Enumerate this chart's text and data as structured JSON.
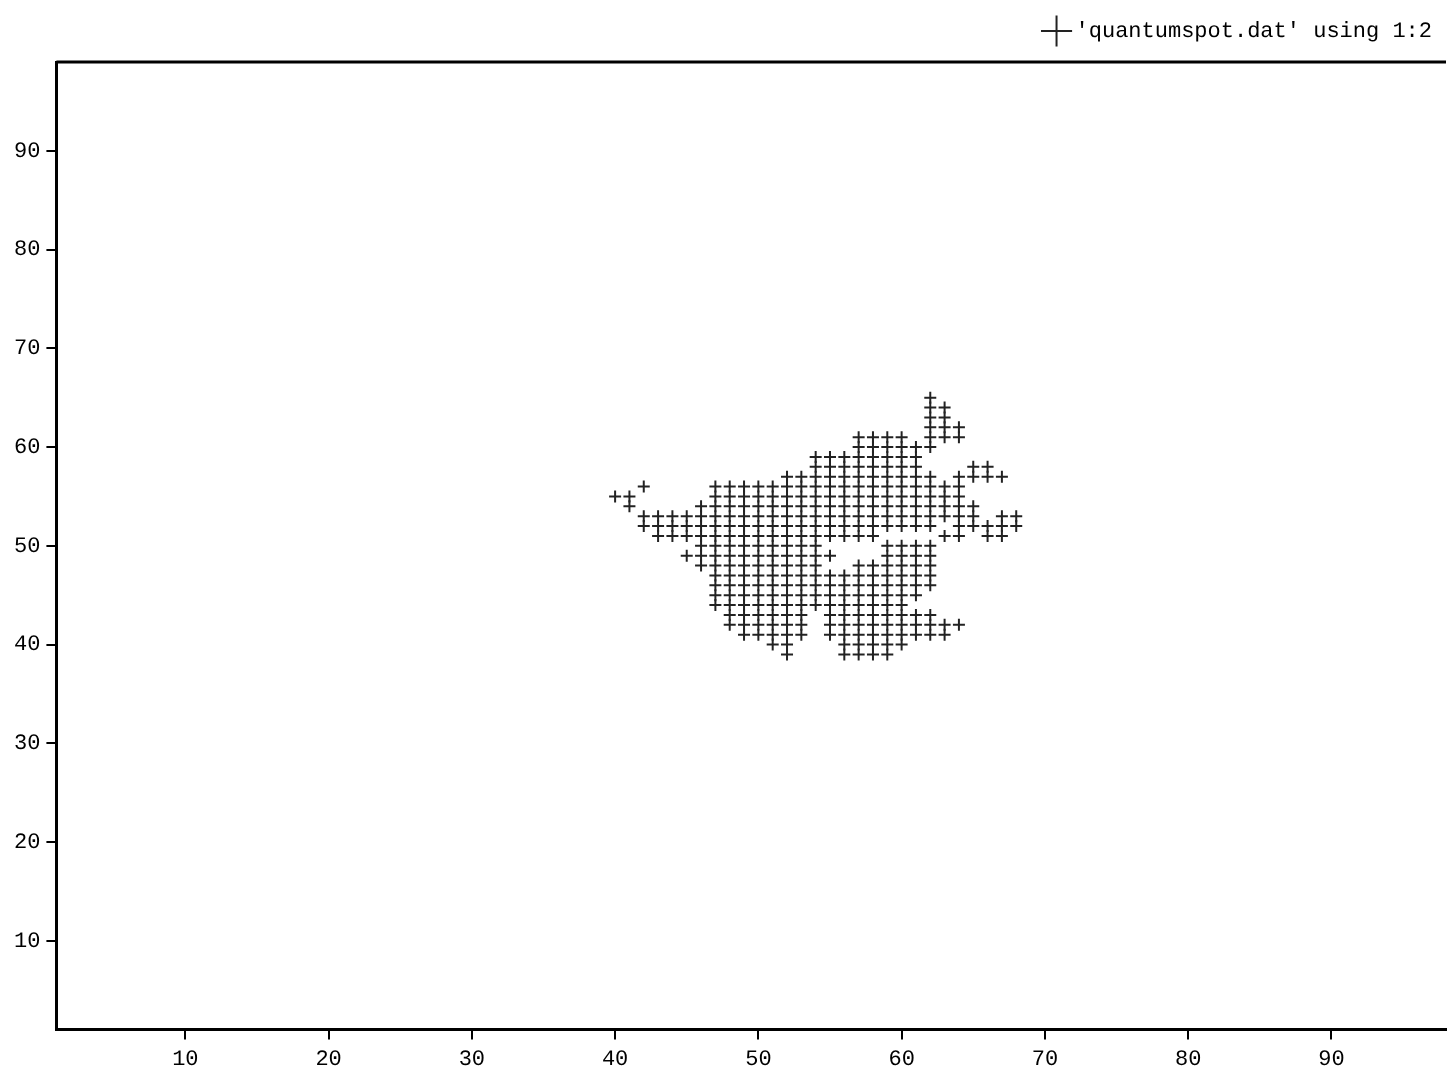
{
  "chart_data": {
    "type": "scatter",
    "xlim": [
      1,
      98
    ],
    "ylim": [
      1,
      99
    ],
    "xticks": [
      10,
      20,
      30,
      40,
      50,
      60,
      70,
      80,
      90
    ],
    "yticks": [
      10,
      20,
      30,
      40,
      50,
      60,
      70,
      80,
      90
    ],
    "grid": false,
    "legend": "top right",
    "marker": "cross",
    "series": [
      {
        "name": "'quantumspot.dat' using 1:2",
        "color": "#222222",
        "x": [
          62,
          62,
          63,
          62,
          63,
          62,
          63,
          64,
          57,
          58,
          59,
          60,
          62,
          63,
          64,
          57,
          58,
          59,
          60,
          61,
          62,
          54,
          55,
          56,
          57,
          58,
          59,
          60,
          61,
          54,
          55,
          56,
          57,
          58,
          59,
          60,
          61,
          65,
          66,
          52,
          53,
          54,
          55,
          56,
          57,
          58,
          59,
          60,
          61,
          62,
          64,
          65,
          66,
          67,
          42,
          47,
          48,
          49,
          50,
          51,
          52,
          53,
          54,
          55,
          56,
          57,
          58,
          59,
          60,
          61,
          62,
          63,
          64,
          40,
          41,
          47,
          48,
          49,
          50,
          51,
          52,
          53,
          54,
          55,
          56,
          57,
          58,
          59,
          60,
          61,
          62,
          63,
          64,
          41,
          46,
          47,
          48,
          49,
          50,
          51,
          52,
          53,
          54,
          55,
          56,
          57,
          58,
          59,
          60,
          61,
          62,
          63,
          64,
          65,
          42,
          43,
          44,
          45,
          46,
          47,
          48,
          49,
          50,
          51,
          52,
          53,
          54,
          55,
          56,
          57,
          58,
          59,
          60,
          61,
          62,
          63,
          64,
          65,
          67,
          68,
          42,
          43,
          44,
          45,
          46,
          47,
          48,
          49,
          50,
          51,
          52,
          53,
          54,
          55,
          56,
          57,
          58,
          59,
          60,
          61,
          62,
          64,
          65,
          66,
          67,
          68,
          43,
          44,
          45,
          46,
          47,
          48,
          49,
          50,
          51,
          52,
          53,
          54,
          55,
          56,
          57,
          58,
          63,
          64,
          66,
          67,
          46,
          47,
          48,
          49,
          50,
          51,
          52,
          53,
          54,
          59,
          60,
          61,
          62,
          45,
          46,
          47,
          48,
          49,
          50,
          51,
          52,
          53,
          54,
          55,
          59,
          60,
          61,
          62,
          46,
          47,
          48,
          49,
          50,
          51,
          52,
          53,
          54,
          57,
          58,
          59,
          60,
          61,
          62,
          47,
          48,
          49,
          50,
          51,
          52,
          53,
          54,
          55,
          56,
          57,
          58,
          59,
          60,
          61,
          62,
          47,
          48,
          49,
          50,
          51,
          52,
          53,
          54,
          55,
          56,
          57,
          58,
          59,
          60,
          61,
          62,
          47,
          48,
          49,
          50,
          51,
          52,
          53,
          54,
          55,
          56,
          57,
          58,
          59,
          60,
          61,
          47,
          48,
          49,
          50,
          51,
          52,
          53,
          54,
          55,
          56,
          57,
          58,
          59,
          60,
          48,
          49,
          50,
          51,
          52,
          53,
          55,
          56,
          57,
          58,
          59,
          60,
          61,
          62,
          48,
          49,
          50,
          51,
          52,
          53,
          55,
          56,
          57,
          58,
          59,
          60,
          61,
          62,
          63,
          64,
          49,
          50,
          51,
          52,
          53,
          55,
          56,
          57,
          58,
          59,
          60,
          61,
          62,
          63,
          51,
          52,
          56,
          57,
          58,
          59,
          60,
          52,
          56,
          57,
          58,
          59
        ],
        "values": [
          65,
          64,
          64,
          63,
          63,
          62,
          62,
          62,
          61,
          61,
          61,
          61,
          61,
          61,
          61,
          60,
          60,
          60,
          60,
          60,
          60,
          59,
          59,
          59,
          59,
          59,
          59,
          59,
          59,
          58,
          58,
          58,
          58,
          58,
          58,
          58,
          58,
          58,
          58,
          57,
          57,
          57,
          57,
          57,
          57,
          57,
          57,
          57,
          57,
          57,
          57,
          57,
          57,
          57,
          56,
          56,
          56,
          56,
          56,
          56,
          56,
          56,
          56,
          56,
          56,
          56,
          56,
          56,
          56,
          56,
          56,
          56,
          56,
          55,
          55,
          55,
          55,
          55,
          55,
          55,
          55,
          55,
          55,
          55,
          55,
          55,
          55,
          55,
          55,
          55,
          55,
          55,
          55,
          54,
          54,
          54,
          54,
          54,
          54,
          54,
          54,
          54,
          54,
          54,
          54,
          54,
          54,
          54,
          54,
          54,
          54,
          54,
          54,
          54,
          53,
          53,
          53,
          53,
          53,
          53,
          53,
          53,
          53,
          53,
          53,
          53,
          53,
          53,
          53,
          53,
          53,
          53,
          53,
          53,
          53,
          53,
          53,
          53,
          53,
          53,
          52,
          52,
          52,
          52,
          52,
          52,
          52,
          52,
          52,
          52,
          52,
          52,
          52,
          52,
          52,
          52,
          52,
          52,
          52,
          52,
          52,
          52,
          52,
          52,
          52,
          52,
          51,
          51,
          51,
          51,
          51,
          51,
          51,
          51,
          51,
          51,
          51,
          51,
          51,
          51,
          51,
          51,
          51,
          51,
          51,
          51,
          50,
          50,
          50,
          50,
          50,
          50,
          50,
          50,
          50,
          50,
          50,
          50,
          50,
          49,
          49,
          49,
          49,
          49,
          49,
          49,
          49,
          49,
          49,
          49,
          49,
          49,
          49,
          49,
          48,
          48,
          48,
          48,
          48,
          48,
          48,
          48,
          48,
          48,
          48,
          48,
          48,
          48,
          48,
          47,
          47,
          47,
          47,
          47,
          47,
          47,
          47,
          47,
          47,
          47,
          47,
          47,
          47,
          47,
          47,
          46,
          46,
          46,
          46,
          46,
          46,
          46,
          46,
          46,
          46,
          46,
          46,
          46,
          46,
          46,
          46,
          45,
          45,
          45,
          45,
          45,
          45,
          45,
          45,
          45,
          45,
          45,
          45,
          45,
          45,
          45,
          44,
          44,
          44,
          44,
          44,
          44,
          44,
          44,
          44,
          44,
          44,
          44,
          44,
          44,
          43,
          43,
          43,
          43,
          43,
          43,
          43,
          43,
          43,
          43,
          43,
          43,
          43,
          43,
          42,
          42,
          42,
          42,
          42,
          42,
          42,
          42,
          42,
          42,
          42,
          42,
          42,
          42,
          42,
          42,
          41,
          41,
          41,
          41,
          41,
          41,
          41,
          41,
          41,
          41,
          41,
          41,
          41,
          41,
          40,
          40,
          40,
          40,
          40,
          40,
          40,
          39,
          39,
          39,
          39,
          39
        ]
      }
    ]
  }
}
